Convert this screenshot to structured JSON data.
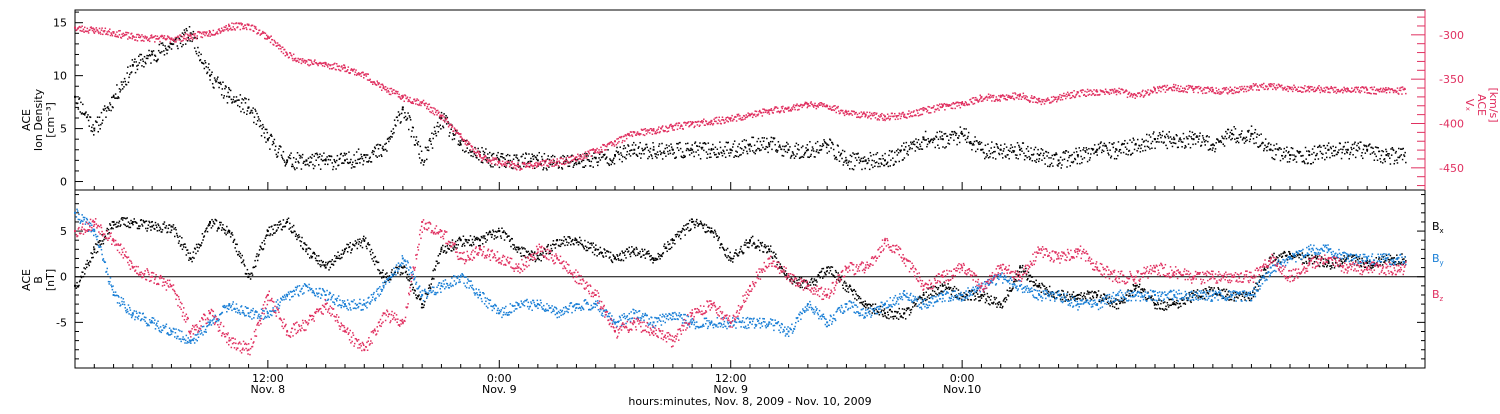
{
  "chart_data": [
    {
      "type": "scatter",
      "panel": "top",
      "ylabel_left": [
        "ACE",
        "Ion Density",
        "[cm⁻³]"
      ],
      "ylabel_right": [
        "ACE",
        "Vₓ",
        "[km/s]"
      ],
      "ylim_left": [
        -0.8,
        16.2
      ],
      "ylim_right": [
        -475,
        -272
      ],
      "yticks_left": [
        0,
        5,
        10,
        15
      ],
      "yticks_right": [
        -450,
        -400,
        -350,
        -300
      ],
      "series": [
        {
          "axis": "left",
          "color": "#000000",
          "x_hours": [
            0,
            1,
            2,
            3,
            4,
            5,
            6,
            7,
            8,
            9,
            10,
            11,
            12,
            13,
            14,
            15,
            16,
            17,
            18,
            19,
            20,
            21,
            22,
            23,
            24,
            25,
            26,
            27,
            28,
            29,
            30,
            31,
            32,
            33,
            34,
            35,
            36,
            37,
            38,
            39,
            40,
            41,
            42,
            43,
            44,
            45,
            46,
            47,
            48,
            49,
            50,
            51,
            52,
            53,
            54,
            55,
            56,
            57,
            58,
            59,
            60,
            61,
            62,
            63,
            64,
            65,
            66,
            67,
            68
          ],
          "values": [
            8,
            5,
            8,
            11,
            12,
            13,
            14,
            10,
            8,
            7,
            4,
            2,
            2,
            2,
            2,
            2.5,
            3,
            7,
            2,
            6,
            3.5,
            2.5,
            2,
            2,
            2,
            1.8,
            2,
            2.2,
            2.5,
            3,
            3,
            3,
            3,
            3,
            3,
            3.5,
            3.5,
            3,
            3,
            3.5,
            2,
            2,
            2,
            3,
            4,
            4,
            4.5,
            3,
            3,
            3,
            2.5,
            2,
            2.5,
            3,
            3,
            3.5,
            4,
            4,
            4,
            3.5,
            4.5,
            4.5,
            3,
            2.5,
            2.5,
            3,
            3,
            3,
            2.5
          ]
        },
        {
          "axis": "right",
          "color": "#e03060",
          "x_hours": [
            0,
            1,
            2,
            3,
            4,
            5,
            6,
            7,
            8,
            9,
            10,
            11,
            12,
            13,
            14,
            15,
            16,
            17,
            18,
            19,
            20,
            21,
            22,
            23,
            24,
            25,
            26,
            27,
            28,
            29,
            30,
            31,
            32,
            33,
            34,
            35,
            36,
            37,
            38,
            39,
            40,
            41,
            42,
            43,
            44,
            45,
            46,
            47,
            48,
            49,
            50,
            51,
            52,
            53,
            54,
            55,
            56,
            57,
            58,
            59,
            60,
            61,
            62,
            63,
            64,
            65,
            66,
            67,
            68
          ],
          "values": [
            -292,
            -294,
            -297,
            -302,
            -303,
            -304,
            -301,
            -297,
            -290,
            -289,
            -302,
            -322,
            -330,
            -333,
            -337,
            -345,
            -360,
            -370,
            -376,
            -392,
            -415,
            -437,
            -443,
            -448,
            -445,
            -443,
            -438,
            -430,
            -420,
            -410,
            -408,
            -403,
            -400,
            -397,
            -394,
            -390,
            -385,
            -382,
            -378,
            -380,
            -387,
            -390,
            -392,
            -390,
            -385,
            -380,
            -377,
            -370,
            -370,
            -368,
            -375,
            -370,
            -365,
            -364,
            -363,
            -368,
            -361,
            -359,
            -361,
            -362,
            -362,
            -358,
            -358,
            -360,
            -360,
            -361,
            -361,
            -362,
            -362
          ]
        }
      ]
    },
    {
      "type": "scatter",
      "panel": "bottom",
      "ylabel_left": [
        "ACE",
        "B",
        "[nT]"
      ],
      "ylim": [
        -10,
        9.5
      ],
      "yticks": [
        -5,
        0,
        5
      ],
      "zero_line": true,
      "legend": [
        "Bₓ",
        "Bᵧ",
        "B_z"
      ],
      "series": [
        {
          "name": "Bₓ",
          "color": "#000000",
          "x_hours": [
            0,
            1,
            2,
            3,
            4,
            5,
            6,
            7,
            8,
            9,
            10,
            11,
            12,
            13,
            14,
            15,
            16,
            17,
            18,
            19,
            20,
            21,
            22,
            23,
            24,
            25,
            26,
            27,
            28,
            29,
            30,
            31,
            32,
            33,
            34,
            35,
            36,
            37,
            38,
            39,
            40,
            41,
            42,
            43,
            44,
            45,
            46,
            47,
            48,
            49,
            50,
            51,
            52,
            53,
            54,
            55,
            56,
            57,
            58,
            59,
            60,
            61,
            62,
            63,
            64,
            65,
            66,
            67,
            68
          ],
          "values": [
            -1,
            3,
            6,
            6,
            5.5,
            5.5,
            2,
            6,
            5,
            0,
            5,
            6,
            3,
            1,
            3,
            4,
            0,
            1,
            -3,
            3,
            4,
            4,
            5,
            3,
            2,
            4,
            4,
            3,
            2,
            3,
            2,
            4,
            6,
            5,
            2,
            4,
            3,
            0,
            -1,
            1,
            -1,
            -3,
            -4,
            -4,
            -2,
            -1,
            -2,
            -2,
            -3,
            1,
            -1,
            -2,
            -2,
            -2,
            -3,
            -1,
            -3,
            -3,
            -2,
            -1.5,
            -2,
            -2,
            2,
            2.5,
            2,
            1.5,
            2,
            1.5,
            2
          ]
        },
        {
          "name": "Bᵧ",
          "color": "#1a7fd6",
          "x_hours": [
            0,
            1,
            2,
            3,
            4,
            5,
            6,
            7,
            8,
            9,
            10,
            11,
            12,
            13,
            14,
            15,
            16,
            17,
            18,
            19,
            20,
            21,
            22,
            23,
            24,
            25,
            26,
            27,
            28,
            29,
            30,
            31,
            32,
            33,
            34,
            35,
            36,
            37,
            38,
            39,
            40,
            41,
            42,
            43,
            44,
            45,
            46,
            47,
            48,
            49,
            50,
            51,
            52,
            53,
            54,
            55,
            56,
            57,
            58,
            59,
            60,
            61,
            62,
            63,
            64,
            65,
            66,
            67,
            68
          ],
          "values": [
            7,
            5,
            -2,
            -4,
            -5,
            -6,
            -7,
            -5,
            -3,
            -4,
            -4,
            -2,
            -1,
            -2,
            -3,
            -3,
            -1,
            2,
            -2,
            -1,
            0,
            -2,
            -4,
            -3,
            -3,
            -4,
            -3,
            -3,
            -5,
            -4,
            -5,
            -4,
            -5,
            -5,
            -5,
            -5,
            -5,
            -6,
            -3,
            -5,
            -3,
            -4,
            -3,
            -2,
            -3,
            -2,
            -2,
            -1,
            0,
            -1,
            -2,
            -2,
            -3,
            -3,
            -2,
            -2,
            -2,
            -2,
            -2,
            -2,
            -2,
            -2,
            1,
            2,
            3,
            3,
            2,
            2,
            2
          ]
        },
        {
          "name": "B_z",
          "color": "#e03060",
          "x_hours": [
            0,
            1,
            2,
            3,
            4,
            5,
            6,
            7,
            8,
            9,
            10,
            11,
            12,
            13,
            14,
            15,
            16,
            17,
            18,
            19,
            20,
            21,
            22,
            23,
            24,
            25,
            26,
            27,
            28,
            29,
            30,
            31,
            32,
            33,
            34,
            35,
            36,
            37,
            38,
            39,
            40,
            41,
            42,
            43,
            44,
            45,
            46,
            47,
            48,
            49,
            50,
            51,
            52,
            53,
            54,
            55,
            56,
            57,
            58,
            59,
            60,
            61,
            62,
            63,
            64,
            65,
            66,
            67,
            68
          ],
          "values": [
            5,
            6,
            4,
            1,
            0,
            -1,
            -6,
            -4,
            -7,
            -8,
            -2,
            -6,
            -5,
            -3,
            -6,
            -8,
            -4,
            -5,
            6,
            5,
            2,
            3,
            2,
            1,
            3,
            2,
            0,
            -2,
            -6,
            -5,
            -6,
            -7,
            -4,
            -3,
            -5,
            -1,
            2,
            0,
            -1,
            -2,
            1,
            1,
            4,
            2,
            -1,
            0,
            1,
            -1,
            1,
            0,
            3,
            2,
            3,
            1,
            0,
            0,
            1,
            0.5,
            0,
            0,
            0,
            0,
            2,
            0,
            1.5,
            2,
            1,
            1,
            1
          ]
        }
      ]
    }
  ],
  "x_axis": {
    "start": "Nov. 8, 2009 02:00",
    "range_hours": [
      0,
      70
    ],
    "major_ticks": [
      {
        "hour": 10,
        "time": "12:00",
        "date": "Nov. 8"
      },
      {
        "hour": 22,
        "time": "0:00",
        "date": "Nov. 9"
      },
      {
        "hour": 34,
        "time": "12:00",
        "date": "Nov. 9"
      },
      {
        "hour": 46,
        "time": "0:00",
        "date": "Nov.10"
      }
    ],
    "title": "hours:minutes, Nov. 8, 2009 - Nov. 10, 2009"
  },
  "legend_labels": [
    "B",
    "B",
    "B"
  ],
  "legend_subs": [
    "x",
    "y",
    "z"
  ]
}
